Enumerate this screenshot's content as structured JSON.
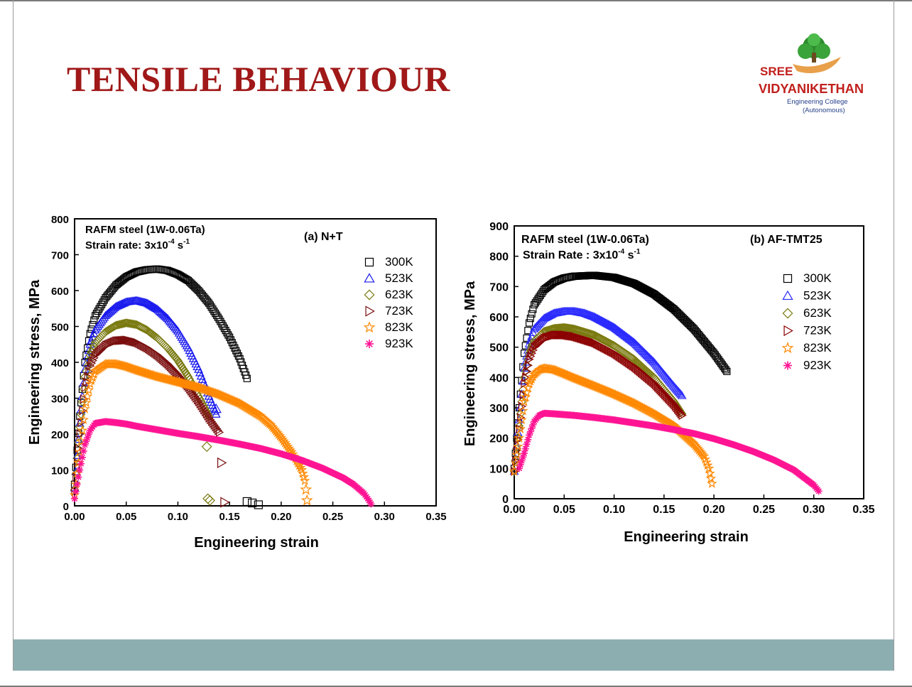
{
  "slide": {
    "title": "TENSILE BEHAVIOUR",
    "logo": {
      "line1": "SREE",
      "line2": "VIDYANIKETHAN",
      "line3": "Engineering College",
      "line4": "(Autonomous)"
    },
    "colors": {
      "title": "#a01818",
      "footer": "#8daeb0",
      "logo_red": "#c0201c",
      "logo_blue": "#27408b"
    }
  },
  "chart_data": [
    {
      "type": "scatter",
      "annotation_left_1": "RAFM steel (1W-0.06Ta)",
      "annotation_left_2": "Strain rate: 3x10",
      "annotation_left_2_sup1": "-4",
      "annotation_left_2_unit": " s",
      "annotation_left_2_sup2": "-1",
      "panel_label": "(a) N+T",
      "xlabel": "Engineering strain",
      "ylabel": "Engineering stress, MPa",
      "xlim": [
        0,
        0.35
      ],
      "ylim": [
        0,
        800
      ],
      "xticks": [
        "0.00",
        "0.05",
        "0.10",
        "0.15",
        "0.20",
        "0.25",
        "0.30",
        "0.35"
      ],
      "yticks": [
        "0",
        "100",
        "200",
        "300",
        "400",
        "500",
        "600",
        "700",
        "800"
      ],
      "legend_position": "top-right",
      "series": [
        {
          "name": "300K",
          "color": "#000000",
          "marker": "square",
          "x": [
            0.0,
            0.005,
            0.01,
            0.015,
            0.02,
            0.03,
            0.04,
            0.05,
            0.06,
            0.07,
            0.08,
            0.09,
            0.1,
            0.11,
            0.12,
            0.13,
            0.14,
            0.15,
            0.16,
            0.167
          ],
          "y": [
            60,
            250,
            400,
            480,
            530,
            580,
            615,
            638,
            652,
            658,
            660,
            656,
            645,
            628,
            600,
            565,
            520,
            470,
            410,
            355
          ],
          "fracture_x": [
            0.167,
            0.172,
            0.178
          ],
          "fracture_y": [
            12,
            8,
            3
          ]
        },
        {
          "name": "523K",
          "color": "#1a1aee",
          "marker": "triangle-up",
          "x": [
            0.0,
            0.005,
            0.01,
            0.015,
            0.02,
            0.03,
            0.04,
            0.05,
            0.06,
            0.07,
            0.08,
            0.09,
            0.1,
            0.11,
            0.12,
            0.13,
            0.137
          ],
          "y": [
            50,
            230,
            380,
            450,
            490,
            530,
            555,
            568,
            572,
            565,
            548,
            522,
            487,
            440,
            380,
            305,
            255
          ],
          "fracture_x": [
            0.137
          ],
          "fracture_y": [
            270
          ]
        },
        {
          "name": "623K",
          "color": "#7a7a10",
          "marker": "diamond",
          "x": [
            0.0,
            0.005,
            0.01,
            0.015,
            0.02,
            0.03,
            0.04,
            0.05,
            0.06,
            0.07,
            0.08,
            0.09,
            0.1,
            0.11,
            0.12,
            0.13
          ],
          "y": [
            45,
            220,
            360,
            420,
            455,
            485,
            503,
            510,
            505,
            490,
            468,
            440,
            405,
            360,
            305,
            250
          ],
          "fracture_x": [
            0.128,
            0.129,
            0.131
          ],
          "fracture_y": [
            165,
            20,
            15
          ]
        },
        {
          "name": "723K",
          "color": "#7a0e0e",
          "marker": "triangle-right",
          "x": [
            0.0,
            0.005,
            0.01,
            0.015,
            0.02,
            0.03,
            0.04,
            0.05,
            0.06,
            0.07,
            0.08,
            0.09,
            0.1,
            0.11,
            0.12,
            0.13,
            0.14
          ],
          "y": [
            40,
            200,
            330,
            390,
            420,
            448,
            460,
            462,
            455,
            440,
            420,
            395,
            365,
            330,
            290,
            245,
            205
          ],
          "fracture_x": [
            0.142,
            0.145
          ],
          "fracture_y": [
            120,
            10
          ]
        },
        {
          "name": "823K",
          "color": "#ff8800",
          "marker": "star",
          "x": [
            0.0,
            0.005,
            0.01,
            0.015,
            0.02,
            0.03,
            0.04,
            0.05,
            0.06,
            0.08,
            0.1,
            0.12,
            0.14,
            0.16,
            0.18,
            0.19,
            0.2,
            0.21,
            0.22,
            0.223
          ],
          "y": [
            30,
            150,
            270,
            340,
            375,
            395,
            395,
            388,
            378,
            360,
            345,
            330,
            310,
            285,
            250,
            225,
            190,
            150,
            100,
            70
          ],
          "fracture_x": [
            0.224,
            0.225
          ],
          "fracture_y": [
            45,
            15
          ]
        },
        {
          "name": "923K",
          "color": "#ff1493",
          "marker": "asterisk",
          "x": [
            0.0,
            0.005,
            0.01,
            0.015,
            0.02,
            0.03,
            0.04,
            0.05,
            0.06,
            0.08,
            0.1,
            0.12,
            0.14,
            0.16,
            0.18,
            0.2,
            0.22,
            0.24,
            0.26,
            0.27,
            0.28,
            0.285,
            0.287
          ],
          "y": [
            20,
            100,
            170,
            210,
            230,
            235,
            232,
            228,
            222,
            212,
            202,
            193,
            183,
            172,
            160,
            145,
            127,
            105,
            78,
            60,
            35,
            15,
            5
          ]
        }
      ]
    },
    {
      "type": "scatter",
      "annotation_left_1": "RAFM steel (1W-0.06Ta)",
      "annotation_left_2": "Strain Rate : 3x10",
      "annotation_left_2_sup1": "-4",
      "annotation_left_2_unit": " s",
      "annotation_left_2_sup2": "-1",
      "panel_label": "(b) AF-TMT25",
      "xlabel": "Engineering strain",
      "ylabel": "Engineering stress, MPa",
      "xlim": [
        0,
        0.35
      ],
      "ylim": [
        0,
        900
      ],
      "xticks": [
        "0.00",
        "0.05",
        "0.10",
        "0.15",
        "0.20",
        "0.25",
        "0.30",
        "0.35"
      ],
      "yticks": [
        "0",
        "100",
        "200",
        "300",
        "400",
        "500",
        "600",
        "700",
        "800",
        "900"
      ],
      "legend_position": "top-right",
      "series": [
        {
          "name": "300K",
          "color": "#000000",
          "marker": "square",
          "x": [
            0.0,
            0.005,
            0.01,
            0.015,
            0.02,
            0.03,
            0.04,
            0.05,
            0.06,
            0.08,
            0.1,
            0.12,
            0.14,
            0.16,
            0.18,
            0.2,
            0.213
          ],
          "y": [
            100,
            300,
            480,
            580,
            640,
            690,
            715,
            728,
            734,
            737,
            730,
            710,
            675,
            625,
            560,
            480,
            420
          ]
        },
        {
          "name": "523K",
          "color": "#2a2aff",
          "marker": "triangle-up",
          "x": [
            0.0,
            0.005,
            0.01,
            0.015,
            0.02,
            0.03,
            0.04,
            0.05,
            0.06,
            0.07,
            0.08,
            0.1,
            0.12,
            0.14,
            0.16,
            0.168
          ],
          "y": [
            90,
            260,
            430,
            510,
            560,
            595,
            612,
            618,
            618,
            612,
            600,
            565,
            515,
            450,
            370,
            340
          ]
        },
        {
          "name": "623K",
          "color": "#7a7a10",
          "marker": "diamond",
          "x": [
            0.0,
            0.005,
            0.01,
            0.015,
            0.02,
            0.03,
            0.04,
            0.05,
            0.06,
            0.08,
            0.1,
            0.12,
            0.14,
            0.16,
            0.168
          ],
          "y": [
            90,
            240,
            400,
            480,
            520,
            552,
            562,
            565,
            560,
            540,
            505,
            460,
            400,
            320,
            280
          ]
        },
        {
          "name": "723K",
          "color": "#8b0000",
          "marker": "triangle-right",
          "x": [
            0.0,
            0.005,
            0.01,
            0.015,
            0.02,
            0.03,
            0.04,
            0.05,
            0.06,
            0.08,
            0.1,
            0.12,
            0.14,
            0.16,
            0.168
          ],
          "y": [
            90,
            230,
            380,
            460,
            500,
            530,
            540,
            540,
            535,
            515,
            480,
            435,
            380,
            310,
            275
          ]
        },
        {
          "name": "823K",
          "color": "#ff8800",
          "marker": "star",
          "x": [
            0.0,
            0.005,
            0.01,
            0.015,
            0.02,
            0.025,
            0.03,
            0.04,
            0.05,
            0.06,
            0.08,
            0.1,
            0.12,
            0.14,
            0.16,
            0.18,
            0.19,
            0.195,
            0.198
          ],
          "y": [
            90,
            200,
            320,
            380,
            410,
            425,
            430,
            425,
            412,
            398,
            372,
            345,
            315,
            280,
            240,
            180,
            140,
            100,
            50
          ]
        },
        {
          "name": "923K",
          "color": "#ff1493",
          "marker": "asterisk",
          "x": [
            0.005,
            0.01,
            0.015,
            0.02,
            0.025,
            0.03,
            0.04,
            0.06,
            0.08,
            0.1,
            0.12,
            0.14,
            0.16,
            0.18,
            0.2,
            0.22,
            0.24,
            0.26,
            0.28,
            0.29,
            0.3,
            0.305
          ],
          "y": [
            100,
            150,
            210,
            255,
            275,
            282,
            280,
            275,
            268,
            260,
            250,
            240,
            228,
            215,
            198,
            178,
            155,
            128,
            95,
            70,
            45,
            25
          ]
        }
      ]
    }
  ]
}
